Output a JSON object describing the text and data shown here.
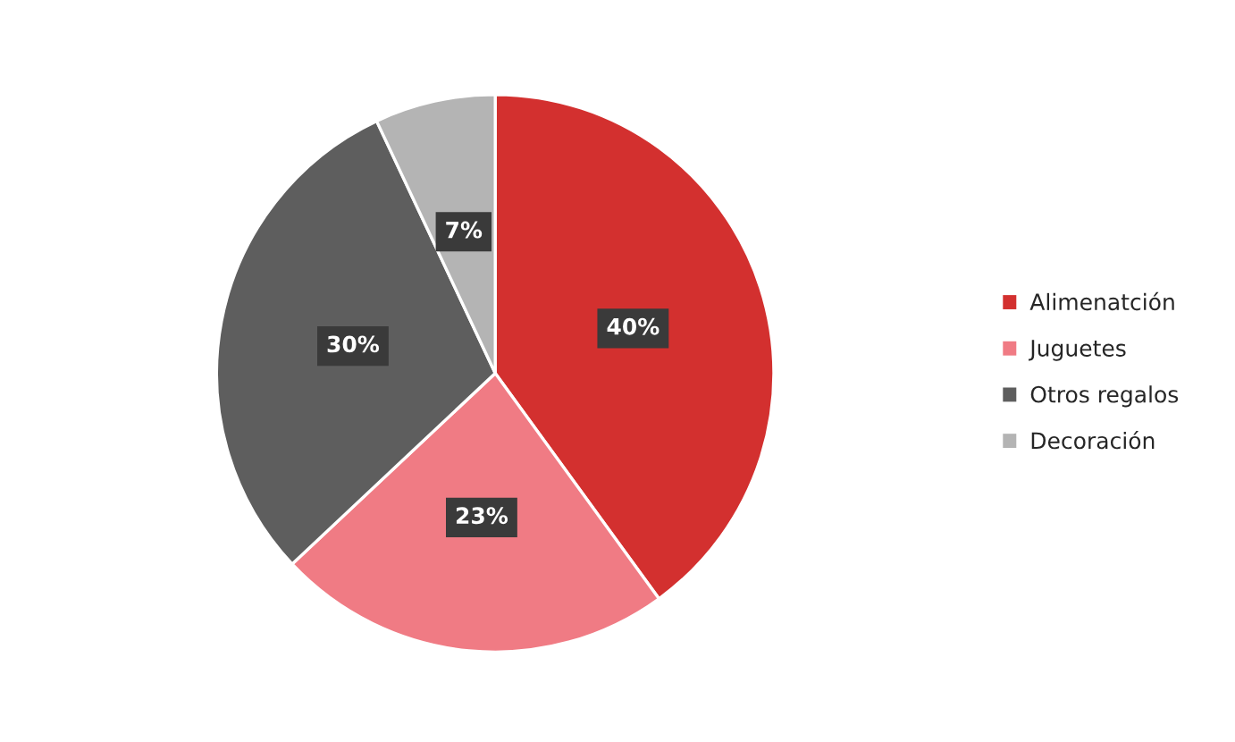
{
  "chart_data": {
    "type": "pie",
    "categories": [
      "Alimenatción",
      "Juguetes",
      "Otros regalos",
      "Decoración"
    ],
    "values": [
      40,
      23,
      30,
      7
    ],
    "colors": [
      "#d3302f",
      "#f07b84",
      "#5e5e5e",
      "#b4b4b4"
    ],
    "value_labels": [
      "40%",
      "23%",
      "30%",
      "7%"
    ],
    "legend": "right"
  }
}
